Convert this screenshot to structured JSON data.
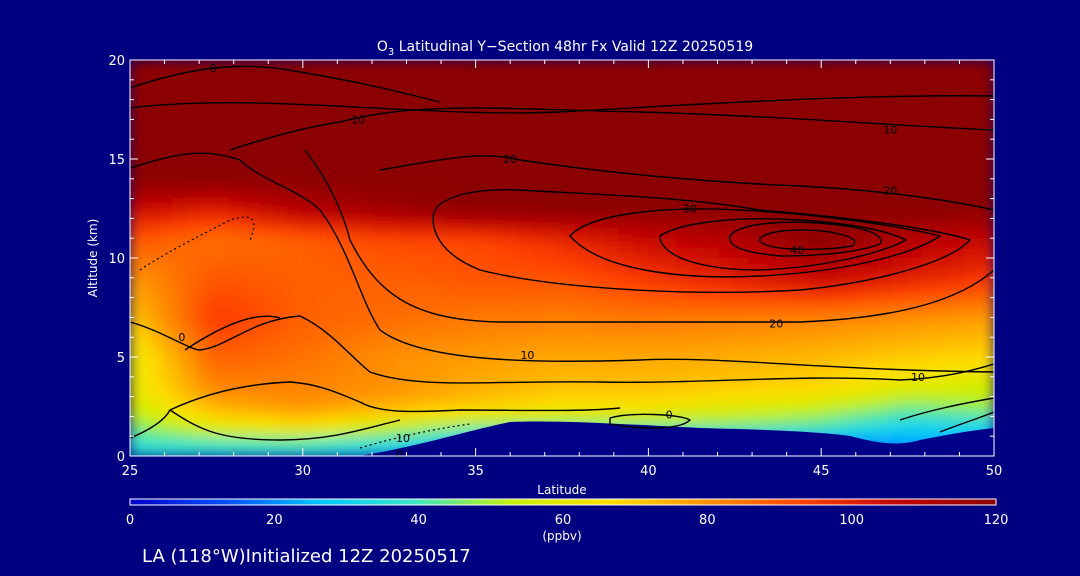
{
  "chart_data": {
    "type": "heatmap",
    "title": "O3 Latitudinal Y−Section 48hr  Fx Valid 12Z 20250519",
    "title_parts": {
      "species": "O",
      "subscript": "3",
      "rest": " Latitudinal Y−Section 48hr  Fx Valid 12Z 20250519"
    },
    "xlabel": "Latitude",
    "ylabel": "Altitude (km)",
    "xlim": [
      25,
      50
    ],
    "ylim": [
      0,
      20
    ],
    "x_ticks": [
      25,
      30,
      35,
      40,
      45,
      50
    ],
    "y_ticks": [
      0,
      5,
      10,
      15,
      20
    ],
    "colorbar": {
      "label": "(ppbv)",
      "range": [
        0,
        120
      ],
      "ticks": [
        0,
        20,
        40,
        60,
        80,
        100,
        120
      ],
      "colors": [
        "#0000c8",
        "#0050ff",
        "#00c8ff",
        "#40e8c0",
        "#c8f000",
        "#ffe000",
        "#ff9000",
        "#ff4000",
        "#c00000",
        "#8b0000"
      ]
    },
    "filled_field_ppbv": {
      "rows_altitude_km": [
        0.5,
        1.5,
        2.5,
        3.5,
        5,
        7,
        9,
        11,
        12.5,
        14,
        17,
        19.5
      ],
      "latitudes": [
        25,
        27.5,
        30,
        32.5,
        35,
        37.5,
        40,
        42.5,
        45,
        47.5,
        50
      ],
      "values": [
        [
          35,
          35,
          35,
          30,
          20,
          10,
          10,
          12,
          15,
          20,
          25
        ],
        [
          45,
          60,
          65,
          55,
          45,
          45,
          45,
          45,
          40,
          30,
          30
        ],
        [
          55,
          75,
          80,
          75,
          70,
          65,
          65,
          60,
          55,
          45,
          50
        ],
        [
          60,
          82,
          82,
          80,
          75,
          72,
          72,
          70,
          68,
          60,
          55
        ],
        [
          60,
          88,
          85,
          80,
          78,
          76,
          76,
          75,
          73,
          70,
          68
        ],
        [
          70,
          95,
          88,
          86,
          84,
          83,
          84,
          83,
          82,
          80,
          78
        ],
        [
          78,
          90,
          88,
          88,
          90,
          90,
          95,
          100,
          105,
          100,
          95
        ],
        [
          90,
          85,
          88,
          92,
          92,
          98,
          105,
          110,
          120,
          110,
          105
        ],
        [
          105,
          100,
          110,
          115,
          120,
          120,
          120,
          120,
          120,
          120,
          120
        ],
        [
          120,
          120,
          120,
          120,
          120,
          120,
          120,
          120,
          120,
          120,
          120
        ],
        [
          120,
          120,
          120,
          120,
          120,
          120,
          120,
          120,
          120,
          120,
          120
        ],
        [
          120,
          120,
          120,
          120,
          120,
          120,
          120,
          120,
          120,
          120,
          120
        ]
      ]
    },
    "contour_labels": [
      {
        "text": "0",
        "lat": 27.4,
        "alt": 19.6
      },
      {
        "text": "10",
        "lat": 31.6,
        "alt": 17.0
      },
      {
        "text": "10",
        "lat": 47.0,
        "alt": 16.5
      },
      {
        "text": "20",
        "lat": 36.0,
        "alt": 15.0
      },
      {
        "text": "20",
        "lat": 47.0,
        "alt": 13.4
      },
      {
        "text": "30",
        "lat": 41.2,
        "alt": 12.5
      },
      {
        "text": "40",
        "lat": 44.3,
        "alt": 10.4
      },
      {
        "text": "0",
        "lat": 26.5,
        "alt": 6.0
      },
      {
        "text": "20",
        "lat": 43.7,
        "alt": 6.7
      },
      {
        "text": "10",
        "lat": 36.5,
        "alt": 5.1
      },
      {
        "text": "10",
        "lat": 47.8,
        "alt": 4.0
      },
      {
        "text": "0",
        "lat": 40.6,
        "alt": 2.1
      },
      {
        "text": "10",
        "lat": 32.9,
        "alt": 0.9
      },
      {
        "text": "0",
        "lat": 32.8,
        "alt": 0.1
      }
    ]
  },
  "footer": {
    "location_text": "LA (118°W)Initialized 12Z 20250517"
  }
}
